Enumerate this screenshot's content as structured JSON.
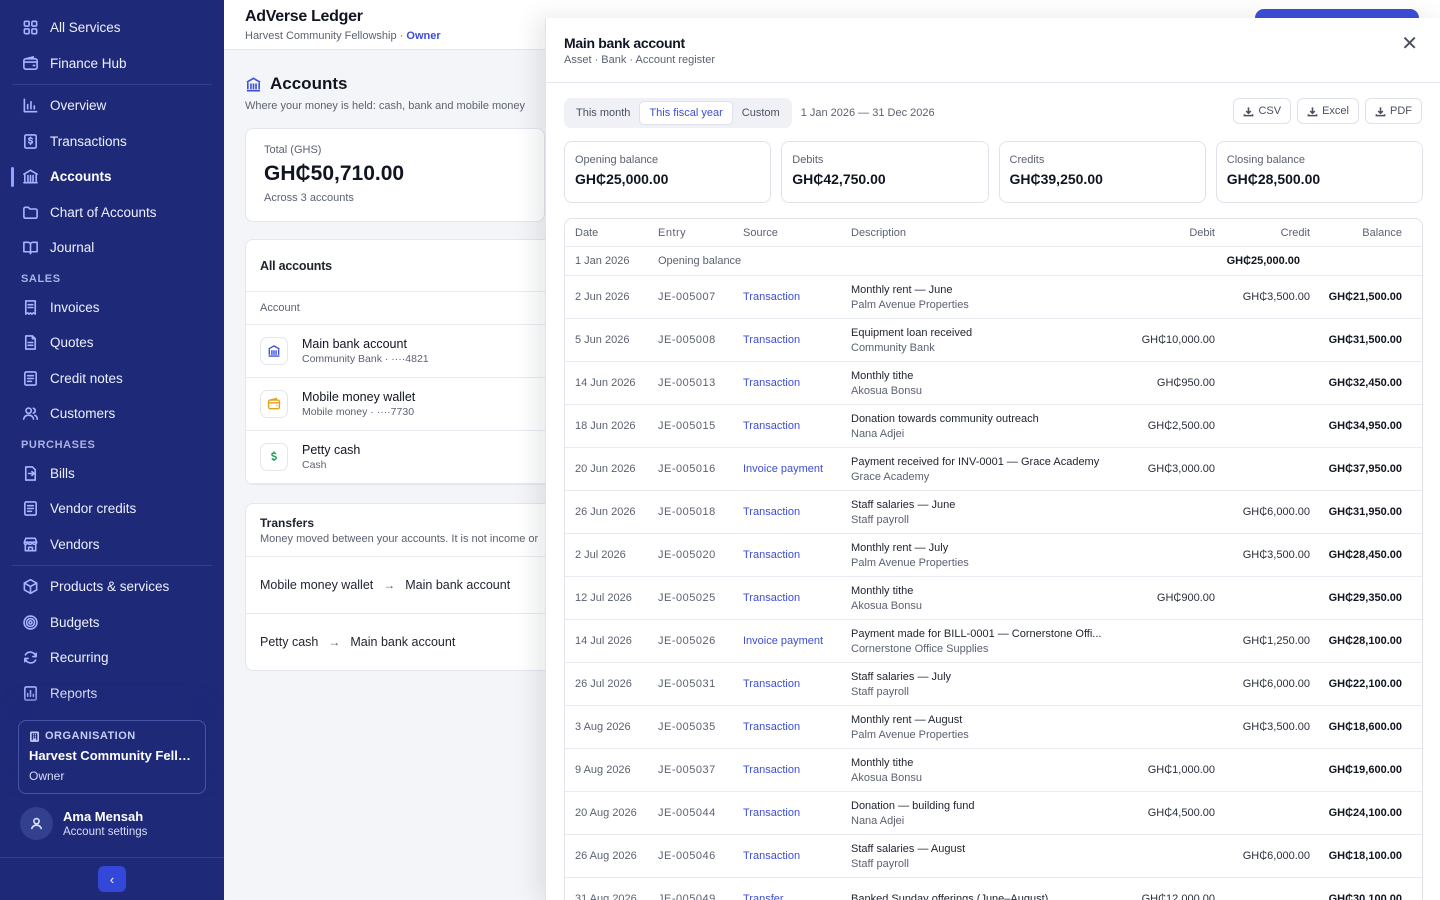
{
  "sidebar": {
    "nav": [
      {
        "label": "All Services",
        "icon": "grid-icon"
      },
      {
        "label": "Finance Hub",
        "icon": "wallet-icon"
      },
      {
        "sep": true
      },
      {
        "label": "Overview",
        "icon": "bar-chart-icon"
      },
      {
        "label": "Transactions",
        "icon": "dollar-file-icon"
      },
      {
        "label": "Accounts",
        "icon": "bank-icon",
        "active": true
      },
      {
        "label": "Chart of Accounts",
        "icon": "folder-icon"
      },
      {
        "label": "Journal",
        "icon": "book-icon"
      },
      {
        "section": "SALES"
      },
      {
        "label": "Invoices",
        "icon": "receipt-icon"
      },
      {
        "label": "Quotes",
        "icon": "document-icon"
      },
      {
        "label": "Credit notes",
        "icon": "list-icon"
      },
      {
        "label": "Customers",
        "icon": "users-icon"
      },
      {
        "section": "PURCHASES"
      },
      {
        "label": "Bills",
        "icon": "bill-icon"
      },
      {
        "label": "Vendor credits",
        "icon": "list-icon"
      },
      {
        "label": "Vendors",
        "icon": "store-icon"
      },
      {
        "sep": true
      },
      {
        "label": "Products & services",
        "icon": "box-icon"
      },
      {
        "label": "Budgets",
        "icon": "target-icon"
      },
      {
        "label": "Recurring",
        "icon": "refresh-icon"
      },
      {
        "label": "Reports",
        "icon": "report-icon"
      }
    ],
    "org": {
      "label": "ORGANISATION",
      "name": "Harvest Community Fello...",
      "role": "Owner"
    },
    "user": {
      "name": "Ama Mensah",
      "sub": "Account settings"
    }
  },
  "topbar": {
    "title": "AdVerse Ledger",
    "org": "Harvest Community Fellowship",
    "sep": " · ",
    "role": "Owner"
  },
  "page": {
    "title": "Accounts",
    "subtitle": "Where your money is held: cash, bank and mobile money"
  },
  "total": {
    "label": "Total (GHS)",
    "value": "GH₵50,710.00",
    "sub": "Across 3 accounts"
  },
  "accounts": {
    "title": "All accounts",
    "column": "Account",
    "rows": [
      {
        "name": "Main bank account",
        "sub": "Community Bank · ····4821",
        "icon": "bank-icon",
        "color": "#3d4ed8"
      },
      {
        "name": "Mobile money wallet",
        "sub": "Mobile money · ····7730",
        "icon": "wallet-icon",
        "color": "#e3a21a"
      },
      {
        "name": "Petty cash",
        "sub": "Cash",
        "icon": "dollar-icon",
        "color": "#1f9d55"
      }
    ]
  },
  "transfers": {
    "title": "Transfers",
    "subtitle": "Money moved between your accounts. It is not income or",
    "rows": [
      {
        "from": "Mobile money wallet",
        "to": "Main bank account"
      },
      {
        "from": "Petty cash",
        "to": "Main bank account"
      }
    ]
  },
  "drawer": {
    "title": "Main bank account",
    "subtitle": "Asset · Bank · Account register",
    "filters": [
      "This month",
      "This fiscal year",
      "Custom"
    ],
    "active_filter": 1,
    "range": "1 Jan 2026 — 31 Dec 2026",
    "exports": [
      "CSV",
      "Excel",
      "PDF"
    ],
    "stats": [
      {
        "label": "Opening balance",
        "value": "GH₵25,000.00"
      },
      {
        "label": "Debits",
        "value": "GH₵42,750.00"
      },
      {
        "label": "Credits",
        "value": "GH₵39,250.00"
      },
      {
        "label": "Closing balance",
        "value": "GH₵28,500.00"
      }
    ],
    "columns": {
      "date": "Date",
      "entry": "Entry",
      "source": "Source",
      "description": "Description",
      "debit": "Debit",
      "credit": "Credit",
      "balance": "Balance"
    },
    "opening": {
      "date": "1 Jan 2026",
      "label": "Opening balance",
      "balance": "GH₵25,000.00"
    },
    "rows": [
      {
        "date": "2 Jun 2026",
        "entry": "JE-005007",
        "source": "Transaction",
        "desc": "Monthly rent — June",
        "party": "Palm Avenue Properties",
        "debit": "",
        "credit": "GH₵3,500.00",
        "balance": "GH₵21,500.00"
      },
      {
        "date": "5 Jun 2026",
        "entry": "JE-005008",
        "source": "Transaction",
        "desc": "Equipment loan received",
        "party": "Community Bank",
        "debit": "GH₵10,000.00",
        "credit": "",
        "balance": "GH₵31,500.00"
      },
      {
        "date": "14 Jun 2026",
        "entry": "JE-005013",
        "source": "Transaction",
        "desc": "Monthly tithe",
        "party": "Akosua Bonsu",
        "debit": "GH₵950.00",
        "credit": "",
        "balance": "GH₵32,450.00"
      },
      {
        "date": "18 Jun 2026",
        "entry": "JE-005015",
        "source": "Transaction",
        "desc": "Donation towards community outreach",
        "party": "Nana Adjei",
        "debit": "GH₵2,500.00",
        "credit": "",
        "balance": "GH₵34,950.00"
      },
      {
        "date": "20 Jun 2026",
        "entry": "JE-005016",
        "source": "Invoice payment",
        "desc": "Payment received for INV-0001 — Grace Academy",
        "party": "Grace Academy",
        "debit": "GH₵3,000.00",
        "credit": "",
        "balance": "GH₵37,950.00"
      },
      {
        "date": "26 Jun 2026",
        "entry": "JE-005018",
        "source": "Transaction",
        "desc": "Staff salaries — June",
        "party": "Staff payroll",
        "debit": "",
        "credit": "GH₵6,000.00",
        "balance": "GH₵31,950.00"
      },
      {
        "date": "2 Jul 2026",
        "entry": "JE-005020",
        "source": "Transaction",
        "desc": "Monthly rent — July",
        "party": "Palm Avenue Properties",
        "debit": "",
        "credit": "GH₵3,500.00",
        "balance": "GH₵28,450.00"
      },
      {
        "date": "12 Jul 2026",
        "entry": "JE-005025",
        "source": "Transaction",
        "desc": "Monthly tithe",
        "party": "Akosua Bonsu",
        "debit": "GH₵900.00",
        "credit": "",
        "balance": "GH₵29,350.00"
      },
      {
        "date": "14 Jul 2026",
        "entry": "JE-005026",
        "source": "Invoice payment",
        "desc": "Payment made for BILL-0001 — Cornerstone Offi...",
        "party": "Cornerstone Office Supplies",
        "debit": "",
        "credit": "GH₵1,250.00",
        "balance": "GH₵28,100.00"
      },
      {
        "date": "26 Jul 2026",
        "entry": "JE-005031",
        "source": "Transaction",
        "desc": "Staff salaries — July",
        "party": "Staff payroll",
        "debit": "",
        "credit": "GH₵6,000.00",
        "balance": "GH₵22,100.00"
      },
      {
        "date": "3 Aug 2026",
        "entry": "JE-005035",
        "source": "Transaction",
        "desc": "Monthly rent — August",
        "party": "Palm Avenue Properties",
        "debit": "",
        "credit": "GH₵3,500.00",
        "balance": "GH₵18,600.00"
      },
      {
        "date": "9 Aug 2026",
        "entry": "JE-005037",
        "source": "Transaction",
        "desc": "Monthly tithe",
        "party": "Akosua Bonsu",
        "debit": "GH₵1,000.00",
        "credit": "",
        "balance": "GH₵19,600.00"
      },
      {
        "date": "20 Aug 2026",
        "entry": "JE-005044",
        "source": "Transaction",
        "desc": "Donation — building fund",
        "party": "Nana Adjei",
        "debit": "GH₵4,500.00",
        "credit": "",
        "balance": "GH₵24,100.00"
      },
      {
        "date": "26 Aug 2026",
        "entry": "JE-005046",
        "source": "Transaction",
        "desc": "Staff salaries — August",
        "party": "Staff payroll",
        "debit": "",
        "credit": "GH₵6,000.00",
        "balance": "GH₵18,100.00"
      },
      {
        "date": "31 Aug 2026",
        "entry": "JE-005049",
        "source": "Transfer",
        "desc": "Banked Sunday offerings (June–August)",
        "party": "",
        "debit": "GH₵12,000.00",
        "credit": "",
        "balance": "GH₵30,100.00"
      }
    ]
  }
}
